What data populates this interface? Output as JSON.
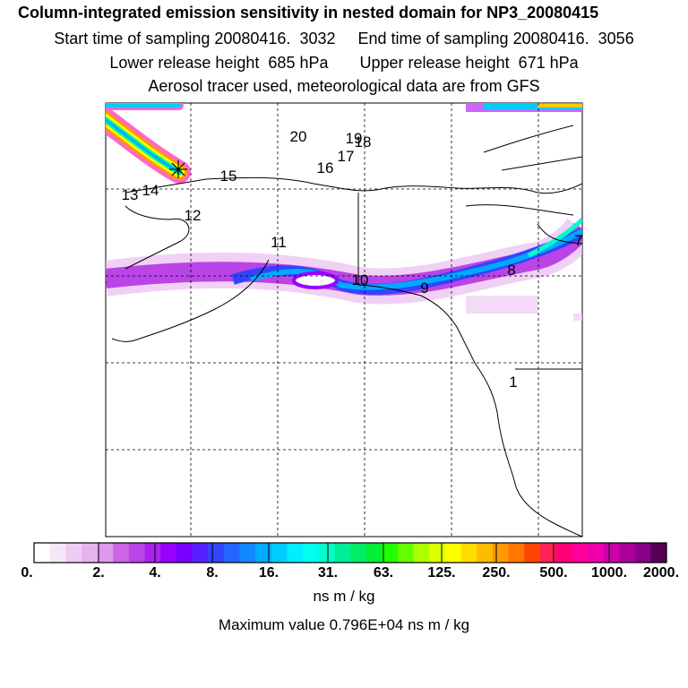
{
  "header": {
    "title": "Column-integrated emission sensitivity in nested domain for NP3_20080415",
    "line1": "Start time of sampling 20080416.  3032     End time of sampling 20080416.  3056",
    "line2": "Lower release height  685 hPa       Upper release height  671 hPa",
    "line3": "Aerosol tracer used, meteorological data are from GFS"
  },
  "map": {
    "marker_symbol": "release-point-star",
    "labels": [
      "20",
      "19",
      "18",
      "17",
      "16",
      "15",
      "14",
      "13",
      "12",
      "11",
      "10",
      "9",
      "8",
      "7",
      "1"
    ]
  },
  "colorbar": {
    "ticks": [
      "0.",
      "2.",
      "4.",
      "8.",
      "16.",
      "31.",
      "63.",
      "125.",
      "250.",
      "500.",
      "1000.",
      "2000."
    ],
    "colors": [
      "#ffffff",
      "#f7e6f9",
      "#efccf4",
      "#e6b3ef",
      "#de99ea",
      "#cc66e6",
      "#bb44e6",
      "#aa22ee",
      "#9900ff",
      "#7700ff",
      "#5522ff",
      "#3344ff",
      "#2266ff",
      "#1188ff",
      "#00aaff",
      "#00ccff",
      "#00eeff",
      "#00ffee",
      "#00ffcc",
      "#00ee99",
      "#00ee66",
      "#00ee33",
      "#22ff00",
      "#66ff00",
      "#aaff00",
      "#ddff00",
      "#ffff00",
      "#ffdd00",
      "#ffbb00",
      "#ff9900",
      "#ff7700",
      "#ff4400",
      "#ff2255",
      "#ff0077",
      "#ff0099",
      "#ee00aa",
      "#cc00aa",
      "#aa0099",
      "#880088",
      "#550055"
    ],
    "units": "ns m / kg",
    "max_text": "Maximum value  0.796E+04 ns m / kg"
  }
}
